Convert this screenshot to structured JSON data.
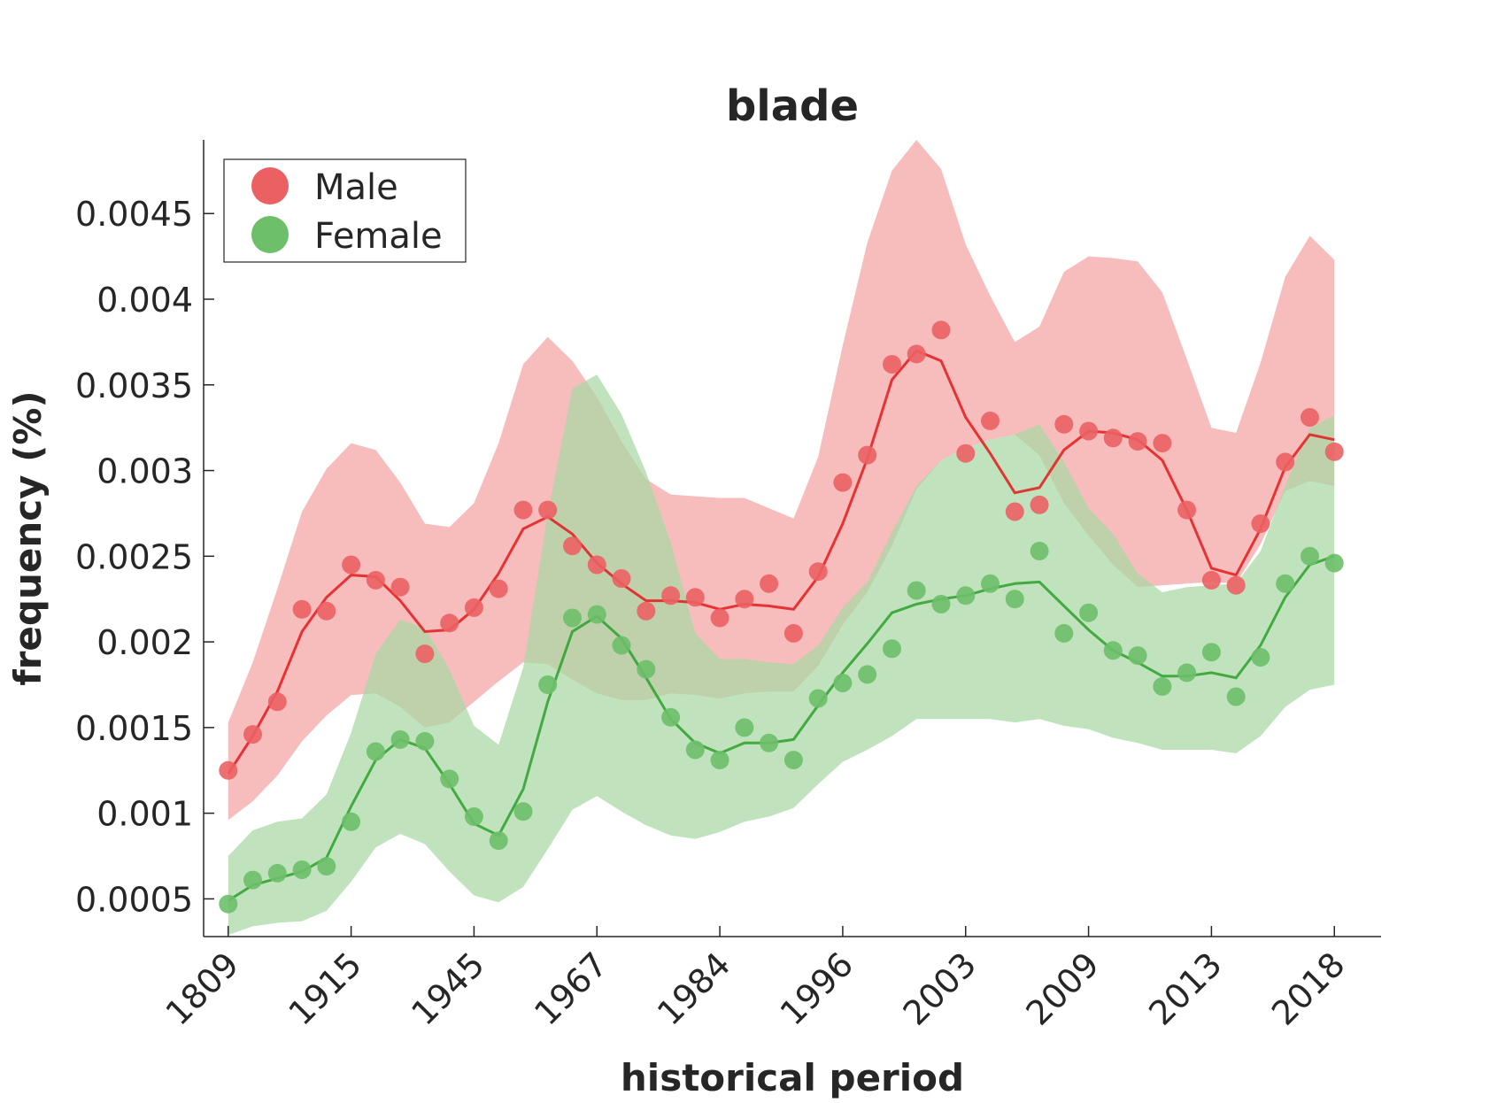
{
  "chart_data": {
    "type": "line",
    "title": "blade",
    "xlabel": "historical period",
    "ylabel": "frequency (%)",
    "x_tick_labels": [
      "1809",
      "1915",
      "1945",
      "1967",
      "1984",
      "1996",
      "2003",
      "2009",
      "2013",
      "2018"
    ],
    "x_tick_index": [
      0,
      5,
      10,
      15,
      20,
      25,
      30,
      35,
      40,
      45
    ],
    "y_ticks": [
      0.0005,
      0.001,
      0.0015,
      0.002,
      0.0025,
      0.003,
      0.0035,
      0.004,
      0.0045
    ],
    "y_tick_labels": [
      "0.0005",
      "0.001",
      "0.0015",
      "0.002",
      "0.0025",
      "0.003",
      "0.0035",
      "0.004",
      "0.0045"
    ],
    "xlim": [
      -1,
      46.9
    ],
    "ylim": [
      0.00028,
      0.00493
    ],
    "legend_position": "top-left",
    "series": [
      {
        "name": "Male",
        "color": "#e41a1c",
        "marker_color": "#eb6163",
        "band_color": "#f4a3a4",
        "points": [
          0.00125,
          0.00146,
          0.00165,
          0.00219,
          0.00218,
          0.00245,
          0.00236,
          0.00232,
          0.00193,
          0.00211,
          0.0022,
          0.00231,
          0.00277,
          0.00277,
          0.00256,
          0.00245,
          0.00237,
          0.00218,
          0.00227,
          0.00226,
          0.00214,
          0.00225,
          0.00234,
          0.00205,
          0.00241,
          0.00293,
          0.00309,
          0.00362,
          0.00368,
          0.00382,
          0.0031,
          0.00329,
          0.00276,
          0.0028,
          0.00327,
          0.00323,
          0.00319,
          0.00317,
          0.00316,
          0.00277,
          0.00236,
          0.00233,
          0.00269,
          0.00305,
          0.00331,
          0.00311
        ],
        "smooth": [
          0.00123,
          0.00145,
          0.00171,
          0.00206,
          0.00226,
          0.00239,
          0.00238,
          0.00224,
          0.00206,
          0.00207,
          0.00219,
          0.0024,
          0.00266,
          0.00273,
          0.00263,
          0.00246,
          0.00234,
          0.00224,
          0.00224,
          0.00223,
          0.00219,
          0.00222,
          0.00221,
          0.00219,
          0.00238,
          0.00269,
          0.00307,
          0.00353,
          0.0037,
          0.00364,
          0.00331,
          0.0031,
          0.00287,
          0.0029,
          0.00312,
          0.00323,
          0.00322,
          0.00318,
          0.00306,
          0.00277,
          0.00243,
          0.00239,
          0.00266,
          0.00302,
          0.00321,
          0.00318
        ],
        "upper": [
          0.00153,
          0.00188,
          0.00231,
          0.00276,
          0.00301,
          0.00316,
          0.00312,
          0.00293,
          0.00269,
          0.00267,
          0.00281,
          0.00316,
          0.00362,
          0.00378,
          0.00364,
          0.00343,
          0.00317,
          0.00295,
          0.00286,
          0.00285,
          0.00284,
          0.00284,
          0.00278,
          0.00272,
          0.00308,
          0.00373,
          0.00433,
          0.00475,
          0.00493,
          0.00476,
          0.00432,
          0.00402,
          0.00375,
          0.00384,
          0.00416,
          0.00425,
          0.00424,
          0.00422,
          0.00404,
          0.00365,
          0.00325,
          0.00322,
          0.00363,
          0.00413,
          0.00437,
          0.00423
        ],
        "lower": [
          0.00096,
          0.00107,
          0.00122,
          0.00142,
          0.00157,
          0.00169,
          0.0017,
          0.00162,
          0.0015,
          0.00153,
          0.00165,
          0.00177,
          0.00188,
          0.00187,
          0.00178,
          0.0017,
          0.00166,
          0.00166,
          0.0017,
          0.00169,
          0.00167,
          0.0017,
          0.00171,
          0.00171,
          0.00186,
          0.0021,
          0.00229,
          0.00256,
          0.00289,
          0.00306,
          0.00313,
          0.00318,
          0.00321,
          0.00309,
          0.00281,
          0.00262,
          0.00245,
          0.00232,
          0.00233,
          0.00234,
          0.00235,
          0.00234,
          0.00257,
          0.00288,
          0.00294,
          0.00291
        ]
      },
      {
        "name": "Female",
        "color": "#2ca02c",
        "marker_color": "#6dbf69",
        "band_color": "#a8d8a3",
        "points": [
          0.00047,
          0.00061,
          0.00065,
          0.00067,
          0.00069,
          0.00095,
          0.00136,
          0.00143,
          0.00142,
          0.0012,
          0.00098,
          0.00084,
          0.00101,
          0.00175,
          0.00214,
          0.00216,
          0.00198,
          0.00184,
          0.00156,
          0.00137,
          0.00131,
          0.0015,
          0.00141,
          0.00131,
          0.00167,
          0.00176,
          0.00181,
          0.00196,
          0.0023,
          0.00222,
          0.00227,
          0.00234,
          0.00225,
          0.00253,
          0.00205,
          0.00217,
          0.00195,
          0.00192,
          0.00174,
          0.00182,
          0.00194,
          0.00168,
          0.00191,
          0.00234,
          0.0025,
          0.00246
        ],
        "smooth": [
          0.00049,
          0.00058,
          0.00062,
          0.00066,
          0.00074,
          0.00104,
          0.00131,
          0.00143,
          0.00138,
          0.00117,
          0.00094,
          0.00087,
          0.00114,
          0.00165,
          0.00206,
          0.00215,
          0.00202,
          0.00179,
          0.00155,
          0.00141,
          0.00135,
          0.00141,
          0.00141,
          0.00143,
          0.00163,
          0.00182,
          0.00199,
          0.00217,
          0.00222,
          0.00225,
          0.00227,
          0.00231,
          0.00234,
          0.00235,
          0.00221,
          0.00207,
          0.00195,
          0.00188,
          0.0018,
          0.0018,
          0.00182,
          0.00179,
          0.00198,
          0.00226,
          0.00245,
          0.0025
        ],
        "upper": [
          0.00075,
          0.0009,
          0.00095,
          0.00097,
          0.00111,
          0.00147,
          0.00193,
          0.00213,
          0.00208,
          0.00184,
          0.00151,
          0.0014,
          0.00185,
          0.00275,
          0.00348,
          0.00356,
          0.00333,
          0.00299,
          0.00258,
          0.00205,
          0.0019,
          0.0019,
          0.00188,
          0.00187,
          0.00198,
          0.0022,
          0.00235,
          0.00264,
          0.00291,
          0.00306,
          0.00313,
          0.00318,
          0.00321,
          0.00327,
          0.00305,
          0.00278,
          0.00263,
          0.0024,
          0.00229,
          0.00232,
          0.00233,
          0.00234,
          0.00253,
          0.00291,
          0.00325,
          0.00332
        ],
        "lower": [
          0.00029,
          0.00034,
          0.00036,
          0.00037,
          0.00043,
          0.0006,
          0.0008,
          0.00088,
          0.00082,
          0.00066,
          0.00052,
          0.00048,
          0.00057,
          0.00079,
          0.00102,
          0.0011,
          0.00101,
          0.00093,
          0.00087,
          0.00085,
          0.00089,
          0.00095,
          0.00098,
          0.00103,
          0.00117,
          0.0013,
          0.00137,
          0.00145,
          0.00155,
          0.00155,
          0.00155,
          0.00155,
          0.00153,
          0.00155,
          0.00151,
          0.00149,
          0.00144,
          0.00141,
          0.00137,
          0.00137,
          0.00137,
          0.00135,
          0.00145,
          0.00162,
          0.00172,
          0.00175
        ]
      }
    ]
  }
}
